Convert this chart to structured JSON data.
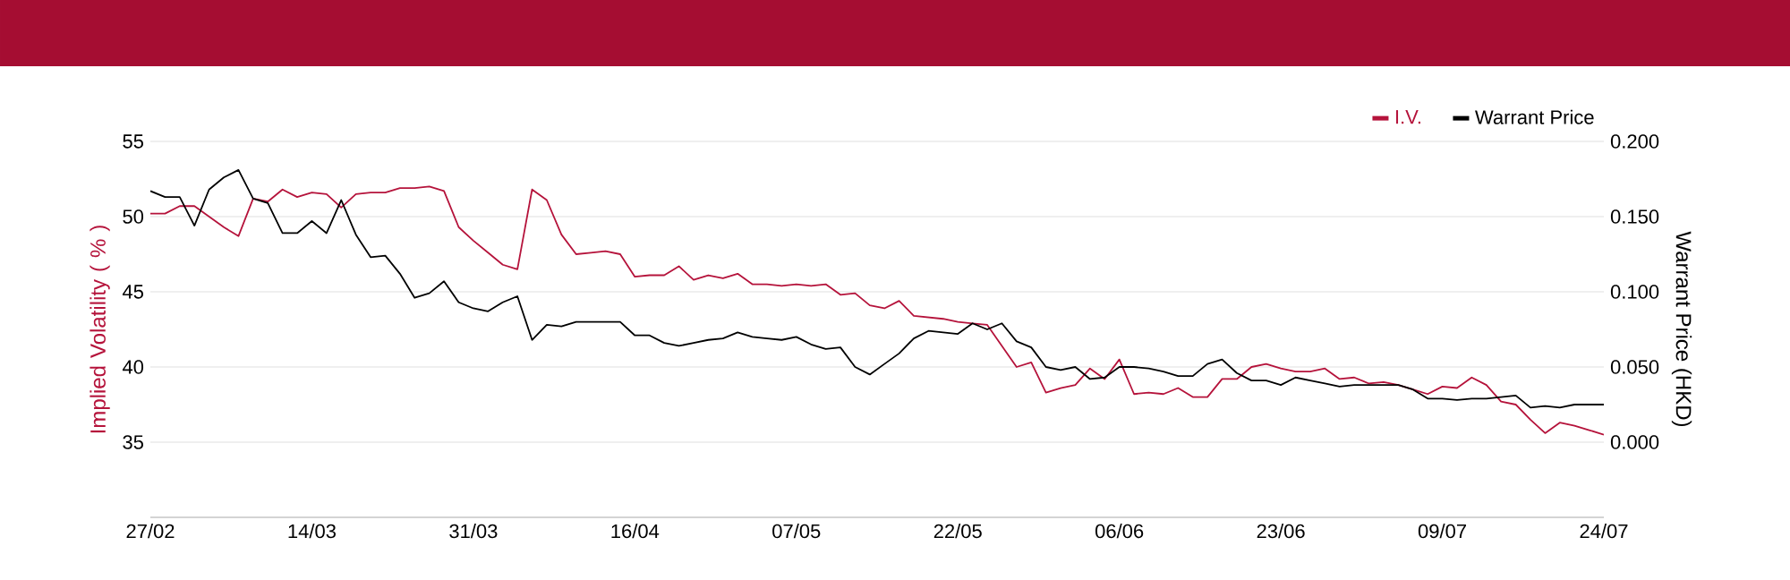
{
  "chart_data": {
    "type": "line",
    "categories": [
      "27/02",
      null,
      null,
      null,
      null,
      null,
      null,
      null,
      null,
      null,
      null,
      "14/03",
      null,
      null,
      null,
      null,
      null,
      null,
      null,
      null,
      null,
      null,
      "31/03",
      null,
      null,
      null,
      null,
      null,
      null,
      null,
      null,
      null,
      null,
      "16/04",
      null,
      null,
      null,
      null,
      null,
      null,
      null,
      null,
      null,
      null,
      "07/05",
      null,
      null,
      null,
      null,
      null,
      null,
      null,
      null,
      null,
      null,
      "22/05",
      null,
      null,
      null,
      null,
      null,
      null,
      null,
      null,
      null,
      null,
      "06/06",
      null,
      null,
      null,
      null,
      null,
      null,
      null,
      null,
      null,
      null,
      "23/06",
      null,
      null,
      null,
      null,
      null,
      null,
      null,
      null,
      null,
      null,
      "09/07",
      null,
      null,
      null,
      null,
      null,
      null,
      null,
      null,
      null,
      null,
      "24/07"
    ],
    "series": [
      {
        "name": "I.V.",
        "color": "#b5133b",
        "axis": "y",
        "values": [
          50.2,
          50.2,
          50.7,
          50.7,
          50.0,
          49.3,
          48.7,
          51.2,
          51.0,
          51.8,
          51.3,
          51.6,
          51.5,
          50.6,
          51.5,
          51.6,
          51.6,
          51.9,
          51.9,
          52.0,
          51.7,
          49.3,
          48.4,
          47.6,
          46.8,
          46.5,
          51.8,
          51.1,
          48.8,
          47.5,
          47.6,
          47.7,
          47.5,
          46.0,
          46.1,
          46.1,
          46.7,
          45.8,
          46.1,
          45.9,
          46.2,
          45.5,
          45.5,
          45.4,
          45.5,
          45.4,
          45.5,
          44.8,
          44.9,
          44.1,
          43.9,
          44.4,
          43.4,
          43.3,
          43.2,
          43.0,
          42.9,
          42.8,
          41.4,
          40.0,
          40.3,
          38.3,
          38.6,
          38.8,
          39.9,
          39.2,
          40.5,
          38.2,
          38.3,
          38.2,
          38.6,
          38.0,
          38.0,
          39.2,
          39.2,
          40.0,
          40.2,
          39.9,
          39.7,
          39.7,
          39.9,
          39.2,
          39.3,
          38.9,
          39.0,
          38.8,
          38.5,
          38.2,
          38.7,
          38.6,
          39.3,
          38.8,
          37.7,
          37.5,
          36.5,
          35.6,
          36.3,
          36.1,
          35.8,
          35.5
        ]
      },
      {
        "name": "Warrant Price",
        "color": "#000000",
        "axis": "y2",
        "values": [
          0.167,
          0.163,
          0.163,
          0.144,
          0.168,
          0.176,
          0.181,
          0.162,
          0.159,
          0.139,
          0.139,
          0.147,
          0.139,
          0.161,
          0.138,
          0.123,
          0.124,
          0.112,
          0.096,
          0.099,
          0.107,
          0.093,
          0.089,
          0.087,
          0.093,
          0.097,
          0.068,
          0.078,
          0.077,
          0.08,
          0.08,
          0.08,
          0.08,
          0.071,
          0.071,
          0.066,
          0.064,
          0.066,
          0.068,
          0.069,
          0.073,
          0.07,
          0.069,
          0.068,
          0.07,
          0.065,
          0.062,
          0.063,
          0.05,
          0.045,
          0.052,
          0.059,
          0.069,
          0.074,
          0.073,
          0.072,
          0.079,
          0.075,
          0.079,
          0.067,
          0.063,
          0.05,
          0.048,
          0.05,
          0.042,
          0.043,
          0.05,
          0.05,
          0.049,
          0.047,
          0.044,
          0.044,
          0.052,
          0.055,
          0.046,
          0.041,
          0.041,
          0.038,
          0.043,
          0.041,
          0.039,
          0.037,
          0.038,
          0.038,
          0.038,
          0.038,
          0.035,
          0.029,
          0.029,
          0.028,
          0.029,
          0.029,
          0.03,
          0.031,
          0.023,
          0.024,
          0.023,
          0.025,
          0.025,
          0.025
        ]
      }
    ],
    "ylabel": "Implied Volatility ( % )",
    "y2label": "Warrant Price (HKD)",
    "ylim": [
      30,
      55
    ],
    "yticks": [
      35,
      40,
      45,
      50,
      55
    ],
    "y2lim": [
      -0.05,
      0.2
    ],
    "y2ticks": [
      {
        "value": 0,
        "label": "0.000"
      },
      {
        "value": 0.05,
        "label": "0.050"
      },
      {
        "value": 0.1,
        "label": "0.100"
      },
      {
        "value": 0.15,
        "label": "0.150"
      },
      {
        "value": 0.2,
        "label": "0.200"
      }
    ],
    "grid": "y",
    "legend": "top right"
  }
}
